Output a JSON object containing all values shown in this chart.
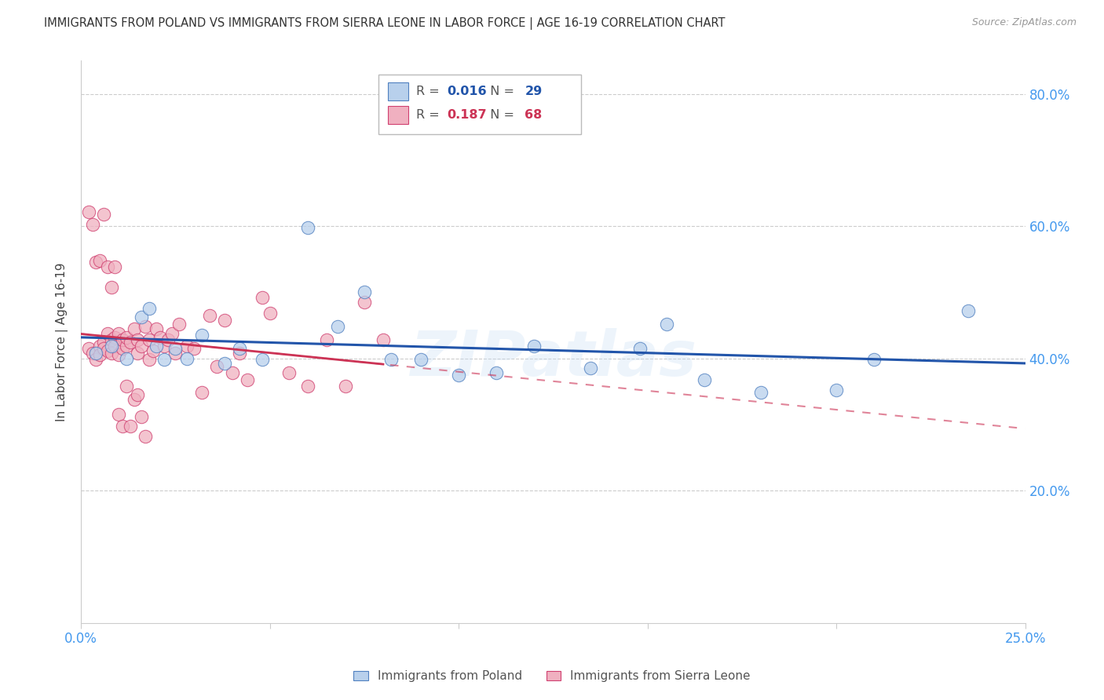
{
  "title": "IMMIGRANTS FROM POLAND VS IMMIGRANTS FROM SIERRA LEONE IN LABOR FORCE | AGE 16-19 CORRELATION CHART",
  "source": "Source: ZipAtlas.com",
  "ylabel": "In Labor Force | Age 16-19",
  "r_poland": 0.016,
  "n_poland": 29,
  "r_sierra": 0.187,
  "n_sierra": 68,
  "color_poland_fill": "#b8d0ec",
  "color_poland_edge": "#5080c0",
  "color_sierra_fill": "#f0b0c0",
  "color_sierra_edge": "#d04070",
  "color_poland_line": "#2255aa",
  "color_sierra_line": "#cc3355",
  "color_axis_labels": "#4499ee",
  "color_title": "#333333",
  "color_source": "#999999",
  "xlim": [
    0.0,
    0.25
  ],
  "ylim": [
    0.0,
    0.85
  ],
  "yticks": [
    0.2,
    0.4,
    0.6,
    0.8
  ],
  "ytick_labels": [
    "20.0%",
    "40.0%",
    "60.0%",
    "80.0%"
  ],
  "xticks": [
    0.0,
    0.05,
    0.1,
    0.15,
    0.2,
    0.25
  ],
  "xtick_labels": [
    "0.0%",
    "",
    "",
    "",
    "",
    "25.0%"
  ],
  "poland_x": [
    0.004,
    0.008,
    0.012,
    0.016,
    0.018,
    0.02,
    0.022,
    0.025,
    0.028,
    0.032,
    0.038,
    0.042,
    0.048,
    0.06,
    0.068,
    0.075,
    0.082,
    0.09,
    0.1,
    0.11,
    0.12,
    0.135,
    0.148,
    0.155,
    0.165,
    0.18,
    0.2,
    0.21,
    0.235
  ],
  "poland_y": [
    0.408,
    0.418,
    0.4,
    0.462,
    0.475,
    0.418,
    0.398,
    0.415,
    0.4,
    0.435,
    0.392,
    0.415,
    0.398,
    0.598,
    0.448,
    0.5,
    0.398,
    0.398,
    0.375,
    0.378,
    0.418,
    0.385,
    0.415,
    0.452,
    0.368,
    0.348,
    0.352,
    0.398,
    0.472
  ],
  "sierra_x": [
    0.002,
    0.003,
    0.004,
    0.005,
    0.005,
    0.006,
    0.006,
    0.007,
    0.007,
    0.008,
    0.008,
    0.009,
    0.009,
    0.01,
    0.01,
    0.011,
    0.011,
    0.012,
    0.012,
    0.013,
    0.014,
    0.015,
    0.015,
    0.016,
    0.017,
    0.018,
    0.018,
    0.019,
    0.02,
    0.021,
    0.022,
    0.023,
    0.024,
    0.025,
    0.026,
    0.028,
    0.03,
    0.032,
    0.034,
    0.036,
    0.038,
    0.04,
    0.042,
    0.044,
    0.048,
    0.05,
    0.055,
    0.06,
    0.065,
    0.07,
    0.075,
    0.08,
    0.002,
    0.003,
    0.004,
    0.005,
    0.006,
    0.007,
    0.008,
    0.009,
    0.01,
    0.011,
    0.012,
    0.013,
    0.014,
    0.015,
    0.016,
    0.017
  ],
  "sierra_y": [
    0.415,
    0.408,
    0.398,
    0.418,
    0.405,
    0.425,
    0.415,
    0.412,
    0.438,
    0.408,
    0.428,
    0.432,
    0.418,
    0.405,
    0.438,
    0.415,
    0.428,
    0.418,
    0.432,
    0.425,
    0.445,
    0.428,
    0.408,
    0.418,
    0.448,
    0.398,
    0.428,
    0.412,
    0.445,
    0.432,
    0.418,
    0.428,
    0.438,
    0.408,
    0.452,
    0.418,
    0.415,
    0.348,
    0.465,
    0.388,
    0.458,
    0.378,
    0.408,
    0.368,
    0.492,
    0.468,
    0.378,
    0.358,
    0.428,
    0.358,
    0.485,
    0.428,
    0.622,
    0.602,
    0.545,
    0.548,
    0.618,
    0.538,
    0.508,
    0.538,
    0.315,
    0.298,
    0.358,
    0.298,
    0.338,
    0.345,
    0.312,
    0.282
  ],
  "watermark": "ZIPatlas",
  "background_color": "#ffffff",
  "grid_color": "#cccccc"
}
